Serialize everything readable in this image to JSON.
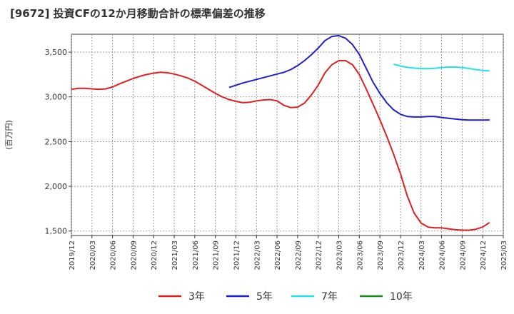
{
  "chart_data": {
    "type": "line",
    "title": "[9672]  投資CFの12か月移動合計の標準偏差の推移",
    "ylabel": "(百万円)",
    "xlabel": "",
    "ylim": [
      1450,
      3700
    ],
    "yticks": [
      1500,
      2000,
      2500,
      3000,
      3500
    ],
    "ytick_labels": [
      "1,500",
      "2,000",
      "2,500",
      "3,000",
      "3,500"
    ],
    "xticks": [
      "2019/12",
      "2020/03",
      "2020/06",
      "2020/09",
      "2020/12",
      "2021/03",
      "2021/06",
      "2021/09",
      "2021/12",
      "2022/03",
      "2022/06",
      "2022/09",
      "2022/12",
      "2023/03",
      "2023/06",
      "2023/09",
      "2023/12",
      "2024/03",
      "2024/06",
      "2024/09",
      "2024/12",
      "2025/03"
    ],
    "grid": true,
    "legend_position": "bottom",
    "series": [
      {
        "name": "3年",
        "color": "#e02020",
        "points": [
          [
            "2019/12",
            3085
          ],
          [
            "2020/01",
            3095
          ],
          [
            "2020/02",
            3095
          ],
          [
            "2020/03",
            3090
          ],
          [
            "2020/04",
            3085
          ],
          [
            "2020/05",
            3090
          ],
          [
            "2020/06",
            3110
          ],
          [
            "2020/07",
            3145
          ],
          [
            "2020/08",
            3175
          ],
          [
            "2020/09",
            3205
          ],
          [
            "2020/10",
            3230
          ],
          [
            "2020/11",
            3250
          ],
          [
            "2020/12",
            3265
          ],
          [
            "2021/01",
            3275
          ],
          [
            "2021/02",
            3270
          ],
          [
            "2021/03",
            3255
          ],
          [
            "2021/04",
            3235
          ],
          [
            "2021/05",
            3210
          ],
          [
            "2021/06",
            3175
          ],
          [
            "2021/07",
            3130
          ],
          [
            "2021/08",
            3085
          ],
          [
            "2021/09",
            3040
          ],
          [
            "2021/10",
            3000
          ],
          [
            "2021/11",
            2970
          ],
          [
            "2021/12",
            2950
          ],
          [
            "2022/01",
            2935
          ],
          [
            "2022/02",
            2940
          ],
          [
            "2022/03",
            2955
          ],
          [
            "2022/04",
            2965
          ],
          [
            "2022/05",
            2970
          ],
          [
            "2022/06",
            2955
          ],
          [
            "2022/07",
            2905
          ],
          [
            "2022/08",
            2880
          ],
          [
            "2022/09",
            2885
          ],
          [
            "2022/10",
            2930
          ],
          [
            "2022/11",
            3020
          ],
          [
            "2022/12",
            3130
          ],
          [
            "2023/01",
            3270
          ],
          [
            "2023/02",
            3360
          ],
          [
            "2023/03",
            3405
          ],
          [
            "2023/04",
            3405
          ],
          [
            "2023/05",
            3360
          ],
          [
            "2023/06",
            3250
          ],
          [
            "2023/07",
            3090
          ],
          [
            "2023/08",
            2920
          ],
          [
            "2023/09",
            2745
          ],
          [
            "2023/10",
            2560
          ],
          [
            "2023/11",
            2360
          ],
          [
            "2023/12",
            2140
          ],
          [
            "2024/01",
            1890
          ],
          [
            "2024/02",
            1700
          ],
          [
            "2024/03",
            1590
          ],
          [
            "2024/04",
            1545
          ],
          [
            "2024/05",
            1535
          ],
          [
            "2024/06",
            1535
          ],
          [
            "2024/07",
            1525
          ],
          [
            "2024/08",
            1515
          ],
          [
            "2024/09",
            1510
          ],
          [
            "2024/10",
            1510
          ],
          [
            "2024/11",
            1520
          ],
          [
            "2024/12",
            1545
          ],
          [
            "2025/01",
            1595
          ]
        ]
      },
      {
        "name": "5年",
        "color": "#1f1fd0",
        "points": [
          [
            "2021/11",
            3105
          ],
          [
            "2021/12",
            3130
          ],
          [
            "2022/01",
            3155
          ],
          [
            "2022/02",
            3175
          ],
          [
            "2022/03",
            3195
          ],
          [
            "2022/04",
            3215
          ],
          [
            "2022/05",
            3235
          ],
          [
            "2022/06",
            3255
          ],
          [
            "2022/07",
            3275
          ],
          [
            "2022/08",
            3305
          ],
          [
            "2022/09",
            3350
          ],
          [
            "2022/10",
            3405
          ],
          [
            "2022/11",
            3470
          ],
          [
            "2022/12",
            3545
          ],
          [
            "2023/01",
            3630
          ],
          [
            "2023/02",
            3675
          ],
          [
            "2023/03",
            3685
          ],
          [
            "2023/04",
            3655
          ],
          [
            "2023/05",
            3585
          ],
          [
            "2023/06",
            3475
          ],
          [
            "2023/07",
            3320
          ],
          [
            "2023/08",
            3165
          ],
          [
            "2023/09",
            3040
          ],
          [
            "2023/10",
            2935
          ],
          [
            "2023/11",
            2855
          ],
          [
            "2023/12",
            2805
          ],
          [
            "2024/01",
            2780
          ],
          [
            "2024/02",
            2775
          ],
          [
            "2024/03",
            2775
          ],
          [
            "2024/04",
            2780
          ],
          [
            "2024/05",
            2780
          ],
          [
            "2024/06",
            2770
          ],
          [
            "2024/07",
            2760
          ],
          [
            "2024/08",
            2752
          ],
          [
            "2024/09",
            2745
          ],
          [
            "2024/10",
            2740
          ],
          [
            "2024/11",
            2740
          ],
          [
            "2024/12",
            2740
          ],
          [
            "2025/01",
            2742
          ]
        ]
      },
      {
        "name": "7年",
        "color": "#22e0f0",
        "points": [
          [
            "2023/11",
            3365
          ],
          [
            "2023/12",
            3345
          ],
          [
            "2024/01",
            3330
          ],
          [
            "2024/02",
            3322
          ],
          [
            "2024/03",
            3317
          ],
          [
            "2024/04",
            3315
          ],
          [
            "2024/05",
            3320
          ],
          [
            "2024/06",
            3328
          ],
          [
            "2024/07",
            3333
          ],
          [
            "2024/08",
            3333
          ],
          [
            "2024/09",
            3328
          ],
          [
            "2024/10",
            3317
          ],
          [
            "2024/11",
            3305
          ],
          [
            "2024/12",
            3295
          ],
          [
            "2025/01",
            3290
          ]
        ]
      },
      {
        "name": "10年",
        "color": "#1a8a1a",
        "points": []
      }
    ]
  }
}
